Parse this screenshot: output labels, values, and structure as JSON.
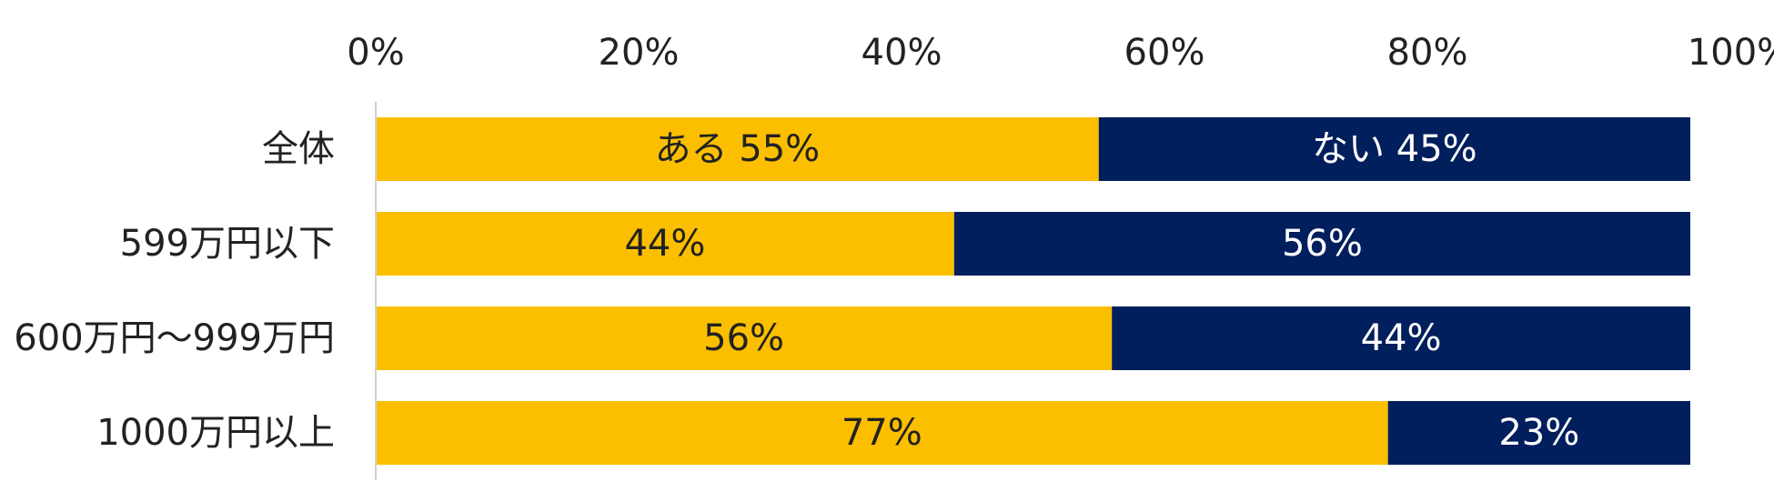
{
  "chart_data": {
    "type": "bar",
    "orientation": "horizontal",
    "stacked": true,
    "title": "",
    "xlabel": "",
    "ylabel": "",
    "xlim": [
      0,
      100
    ],
    "x_ticks": [
      "0%",
      "20%",
      "40%",
      "60%",
      "80%",
      "100%"
    ],
    "x_tick_values": [
      0,
      20,
      40,
      60,
      80,
      100
    ],
    "x_axis_position": "top",
    "grid": false,
    "legend": "none",
    "categories": [
      "全体",
      "599万円以下",
      "600万円～999万円",
      "1000万円以上"
    ],
    "series": [
      {
        "name": "ある",
        "color": "#FBBF00",
        "label_color": "#222222",
        "values": [
          55,
          44,
          56,
          77
        ],
        "labels": [
          "ある 55%",
          "44%",
          "56%",
          "77%"
        ]
      },
      {
        "name": "ない",
        "color": "#001F5C",
        "label_color": "#FFFFFF",
        "values": [
          45,
          56,
          44,
          23
        ],
        "labels": [
          "ない 45%",
          "56%",
          "44%",
          "23%"
        ]
      }
    ]
  }
}
